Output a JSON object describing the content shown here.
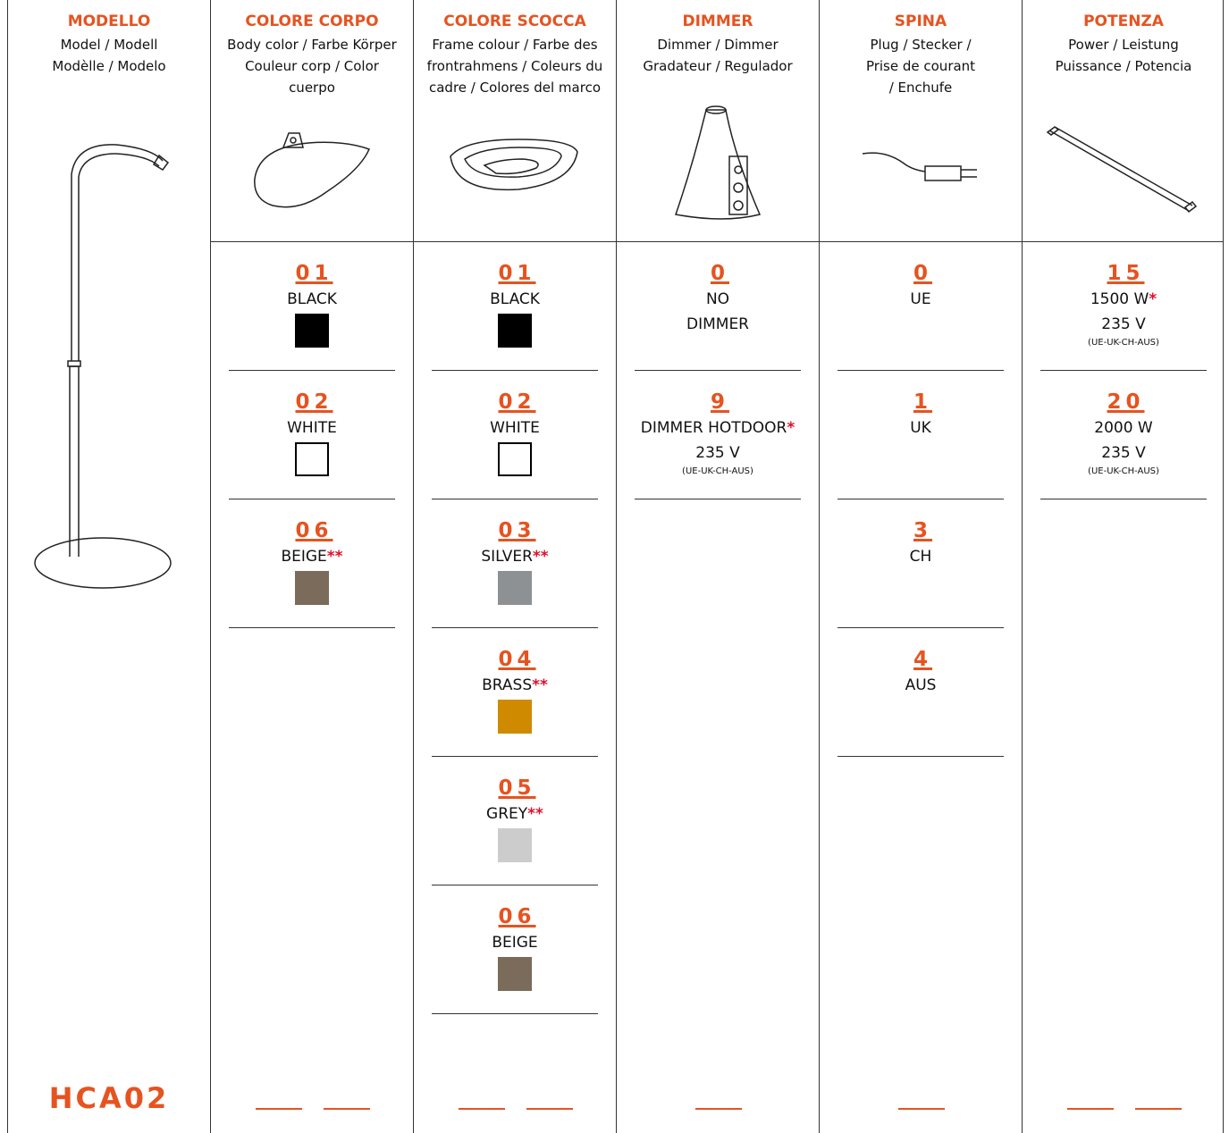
{
  "columns": [
    {
      "title": "MODELLO",
      "subtitle_lines": [
        "Model / Modell",
        "Modèlle / Modelo"
      ],
      "model": "HCA02"
    },
    {
      "title": "COLORE CORPO",
      "subtitle_lines": [
        "Body color / Farbe Körper",
        "Couleur corp / Color",
        "cuerpo"
      ],
      "options": [
        {
          "code": "01",
          "lines": [
            "BLACK"
          ],
          "swatch": "#000000"
        },
        {
          "code": "02",
          "lines": [
            "WHITE"
          ],
          "swatch": "#ffffff"
        },
        {
          "code": "06",
          "lines": [
            "BEIGE"
          ],
          "note": "**",
          "swatch": "#7a6b5b"
        }
      ]
    },
    {
      "title": "COLORE SCOCCA",
      "subtitle_lines": [
        "Frame colour / Farbe des",
        "frontrahmens / Coleurs du",
        "cadre / Colores del marco"
      ],
      "options": [
        {
          "code": "01",
          "lines": [
            "BLACK"
          ],
          "swatch": "#000000"
        },
        {
          "code": "02",
          "lines": [
            "WHITE"
          ],
          "swatch": "#ffffff"
        },
        {
          "code": "03",
          "lines": [
            "SILVER"
          ],
          "note": "**",
          "swatch": "#8e9193"
        },
        {
          "code": "04",
          "lines": [
            "BRASS"
          ],
          "note": "**",
          "swatch": "#d08a00"
        },
        {
          "code": "05",
          "lines": [
            "GREY"
          ],
          "note": "**",
          "swatch": "#cccccc"
        },
        {
          "code": "06",
          "lines": [
            "BEIGE"
          ],
          "swatch": "#7a6b5b"
        }
      ]
    },
    {
      "title": "DIMMER",
      "subtitle_lines": [
        "Dimmer / Dimmer",
        "Gradateur / Regulador"
      ],
      "options": [
        {
          "code": "0",
          "lines": [
            "NO",
            "DIMMER"
          ]
        },
        {
          "code": "9",
          "lines": [
            "DIMMER HOTDOOR",
            "235 V"
          ],
          "note": "*",
          "small": "(UE-UK-CH-AUS)"
        }
      ]
    },
    {
      "title": "SPINA",
      "subtitle_lines": [
        "Plug / Stecker /",
        "Prise de courant",
        "/ Enchufe"
      ],
      "options": [
        {
          "code": "0",
          "lines": [
            "UE"
          ]
        },
        {
          "code": "1",
          "lines": [
            "UK"
          ]
        },
        {
          "code": "3",
          "lines": [
            "CH"
          ]
        },
        {
          "code": "4",
          "lines": [
            "AUS"
          ]
        }
      ]
    },
    {
      "title": "POTENZA",
      "subtitle_lines": [
        "Power / Leistung",
        "Puissance / Potencia"
      ],
      "options": [
        {
          "code": "15",
          "lines": [
            "1500 W",
            "235 V"
          ],
          "note": "*",
          "small": "(UE-UK-CH-AUS)"
        },
        {
          "code": "20",
          "lines": [
            "2000 W",
            "235 V"
          ],
          "small": "(UE-UK-CH-AUS)"
        }
      ]
    }
  ]
}
